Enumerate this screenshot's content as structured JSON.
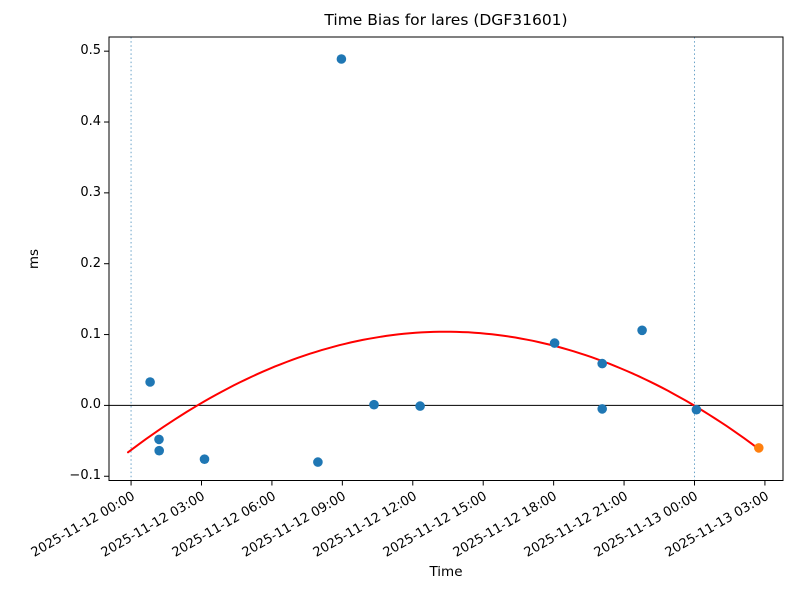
{
  "chart_data": {
    "type": "scatter",
    "title": "Time Bias for lares (DGF31601)",
    "xlabel": "Time",
    "ylabel": "ms",
    "epoch": "2025-11-12 00:00",
    "xlim_hours": [
      -0.94,
      27.77
    ],
    "ylim": [
      -0.106,
      0.52
    ],
    "grid": false,
    "legend": false,
    "zero_line": true,
    "x_ticks": [
      {
        "hours": 0,
        "label": "2025-11-12 00:00"
      },
      {
        "hours": 3,
        "label": "2025-11-12 03:00"
      },
      {
        "hours": 6,
        "label": "2025-11-12 06:00"
      },
      {
        "hours": 9,
        "label": "2025-11-12 09:00"
      },
      {
        "hours": 12,
        "label": "2025-11-12 12:00"
      },
      {
        "hours": 15,
        "label": "2025-11-12 15:00"
      },
      {
        "hours": 18,
        "label": "2025-11-12 18:00"
      },
      {
        "hours": 21,
        "label": "2025-11-12 21:00"
      },
      {
        "hours": 24,
        "label": "2025-11-13 00:00"
      },
      {
        "hours": 27,
        "label": "2025-11-13 03:00"
      }
    ],
    "y_ticks": [
      {
        "value": -0.1,
        "label": "−0.1"
      },
      {
        "value": 0.0,
        "label": "0.0"
      },
      {
        "value": 0.1,
        "label": "0.1"
      },
      {
        "value": 0.2,
        "label": "0.2"
      },
      {
        "value": 0.3,
        "label": "0.3"
      },
      {
        "value": 0.4,
        "label": "0.4"
      },
      {
        "value": 0.5,
        "label": "0.5"
      }
    ],
    "series": [
      {
        "name": "time-bias-observations",
        "color": "#1f77b4",
        "points": [
          {
            "time": "2025-11-12 00:49",
            "hours": 0.81,
            "ms": 0.033
          },
          {
            "time": "2025-11-12 01:11",
            "hours": 1.19,
            "ms": -0.048
          },
          {
            "time": "2025-11-12 01:12",
            "hours": 1.2,
            "ms": -0.064
          },
          {
            "time": "2025-11-12 03:08",
            "hours": 3.13,
            "ms": -0.076
          },
          {
            "time": "2025-11-12 07:58",
            "hours": 7.96,
            "ms": -0.08
          },
          {
            "time": "2025-11-12 08:58",
            "hours": 8.96,
            "ms": 0.489
          },
          {
            "time": "2025-11-12 10:21",
            "hours": 10.35,
            "ms": 0.001
          },
          {
            "time": "2025-11-12 12:19",
            "hours": 12.31,
            "ms": -0.001
          },
          {
            "time": "2025-11-12 18:02",
            "hours": 18.04,
            "ms": 0.088
          },
          {
            "time": "2025-11-12 20:04",
            "hours": 20.07,
            "ms": 0.059
          },
          {
            "time": "2025-11-12 20:04",
            "hours": 20.07,
            "ms": -0.005
          },
          {
            "time": "2025-11-12 21:46",
            "hours": 21.77,
            "ms": 0.106
          },
          {
            "time": "2025-11-13 00:05",
            "hours": 24.08,
            "ms": -0.006
          }
        ]
      },
      {
        "name": "latest-observation",
        "color": "#ff7f0e",
        "points": [
          {
            "time": "2025-11-13 02:44",
            "hours": 26.74,
            "ms": -0.06
          }
        ]
      }
    ],
    "fit_curve": {
      "name": "quadratic-fit",
      "color": "#ff0000",
      "model": "ms = vertex_ms + a * (hours - vertex_hours)^2",
      "vertex_hours": 13.4,
      "vertex_ms": 0.104,
      "a": -0.00093,
      "start_hours": -0.13,
      "end_hours": 26.74
    },
    "vlines": {
      "hours": [
        0,
        24
      ],
      "color": "#6aa3c8",
      "style": "dotted"
    }
  }
}
